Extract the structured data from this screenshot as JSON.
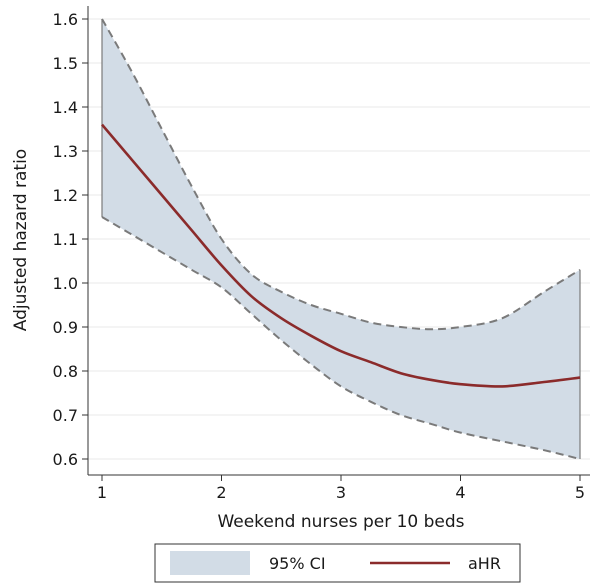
{
  "chart_data": {
    "type": "line",
    "title": "",
    "xlabel": "Weekend nurses per 10 beds",
    "ylabel": "Adjusted hazard ratio",
    "xlim": [
      1,
      5
    ],
    "ylim": [
      0.6,
      1.6
    ],
    "x_ticks": [
      "1",
      "2",
      "3",
      "4",
      "5"
    ],
    "y_ticks": [
      "0.6",
      "0.7",
      "0.8",
      "0.9",
      "1.0",
      "1.1",
      "1.2",
      "1.3",
      "1.4",
      "1.5",
      "1.6"
    ],
    "grid": "horizontal",
    "legend_position": "bottom",
    "series": [
      {
        "name": "aHR",
        "color": "#8b2b2b",
        "x": [
          1,
          1.25,
          1.5,
          1.75,
          2,
          2.25,
          2.5,
          2.75,
          3,
          3.25,
          3.5,
          3.75,
          4,
          4.35,
          4.7,
          5
        ],
        "values": [
          1.36,
          1.28,
          1.2,
          1.12,
          1.04,
          0.97,
          0.92,
          0.88,
          0.845,
          0.82,
          0.795,
          0.78,
          0.77,
          0.765,
          0.775,
          0.785
        ]
      },
      {
        "name": "95% CI",
        "color": "#d2dce6",
        "edge_color": "#7a7a7a",
        "x": [
          1,
          1.25,
          1.5,
          1.75,
          2,
          2.25,
          2.5,
          2.75,
          3,
          3.25,
          3.5,
          3.75,
          4,
          4.35,
          4.7,
          5
        ],
        "upper": [
          1.6,
          1.48,
          1.35,
          1.22,
          1.1,
          1.02,
          0.98,
          0.95,
          0.93,
          0.91,
          0.9,
          0.895,
          0.9,
          0.92,
          0.98,
          1.03
        ],
        "lower": [
          1.15,
          1.11,
          1.07,
          1.03,
          0.99,
          0.93,
          0.87,
          0.815,
          0.765,
          0.73,
          0.7,
          0.68,
          0.66,
          0.64,
          0.62,
          0.6
        ]
      }
    ]
  }
}
